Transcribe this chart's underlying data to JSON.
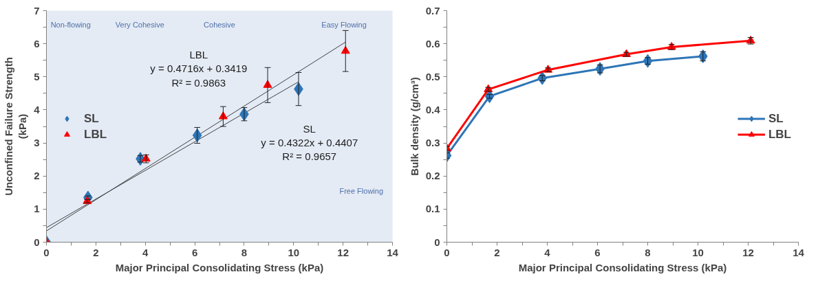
{
  "chart_data": [
    {
      "type": "scatter",
      "xlabel": "Major Principal Consolidating Stress (kPa)",
      "ylabel": "Unconfined Failure Strength\n(kPa)",
      "xlim": [
        0,
        14
      ],
      "ylim": [
        0,
        7
      ],
      "xticks": [
        0,
        {
          "value": 1,
          "label": null
        },
        2,
        {
          "value": 3,
          "label": null
        },
        4,
        {
          "value": 5,
          "label": null
        },
        6,
        {
          "value": 7,
          "label": null
        },
        8,
        {
          "value": 9,
          "label": null
        },
        10,
        {
          "value": 11,
          "label": null
        },
        12,
        {
          "value": 13,
          "label": null
        },
        14
      ],
      "yticks": [
        0,
        {
          "value": 0.5,
          "label": null
        },
        1,
        {
          "value": 1.5,
          "label": null
        },
        2,
        {
          "value": 2.5,
          "label": null
        },
        3,
        {
          "value": 3.5,
          "label": null
        },
        4,
        {
          "value": 4.5,
          "label": null
        },
        5,
        {
          "value": 5.5,
          "label": null
        },
        6,
        {
          "value": 6.5,
          "label": null
        },
        7
      ],
      "grid": false,
      "legend": "left",
      "series": [
        {
          "type": "line",
          "color": "#404040",
          "x": [
            0,
            12.1
          ],
          "values": [
            0.34,
            6.05
          ]
        },
        {
          "type": "line",
          "color": "#404040",
          "x": [
            0,
            10.2
          ],
          "values": [
            0.44,
            4.85
          ]
        },
        {
          "name": "SL",
          "type": "scatter",
          "marker": "diamond",
          "color": "#2e75b6",
          "x": [
            0,
            1.68,
            3.8,
            6.1,
            8.0,
            10.2
          ],
          "values": [
            0,
            1.35,
            2.52,
            3.23,
            3.87,
            4.63
          ],
          "errors": [
            null,
            0.05,
            0.1,
            0.24,
            0.2,
            0.5
          ]
        },
        {
          "name": "LBL",
          "type": "scatter",
          "marker": "triangle",
          "color": "#ff0000",
          "x": [
            0,
            1.65,
            4.03,
            7.15,
            8.95,
            12.1
          ],
          "values": [
            0,
            1.24,
            2.52,
            3.8,
            4.75,
            5.78
          ],
          "errors": [
            null,
            0.05,
            0.12,
            0.3,
            0.53,
            0.62
          ]
        }
      ],
      "annotations": [
        "Non-flowing",
        "Very Cohesive",
        "Cohesive",
        "Easy Flowing",
        "Free Flowing",
        "LBL\ny = 0.4716x + 0.3419\nR² = 0.9863",
        "SL\ny = 0.4322x + 0.4407\nR² = 0.9657"
      ]
    },
    {
      "type": "line",
      "xlabel": "Major Principal Consolidating Stress (kPa)",
      "ylabel": "Bulk density (g/cm³)",
      "xlim": [
        0,
        14
      ],
      "ylim": [
        0,
        0.7
      ],
      "xticks": [
        0,
        {
          "value": 1,
          "label": null
        },
        2,
        {
          "value": 3,
          "label": null
        },
        4,
        {
          "value": 5,
          "label": null
        },
        6,
        {
          "value": 7,
          "label": null
        },
        8,
        {
          "value": 9,
          "label": null
        },
        10,
        {
          "value": 11,
          "label": null
        },
        12,
        {
          "value": 13,
          "label": null
        },
        14
      ],
      "yticks": [
        0,
        {
          "value": 0.05,
          "label": null
        },
        0.1,
        {
          "value": 0.15,
          "label": null
        },
        0.2,
        {
          "value": 0.25,
          "label": null
        },
        0.3,
        {
          "value": 0.35,
          "label": null
        },
        0.4,
        {
          "value": 0.45,
          "label": null
        },
        0.5,
        {
          "value": 0.55,
          "label": null
        },
        0.6,
        {
          "value": 0.65,
          "label": null
        },
        0.7
      ],
      "grid": false,
      "legend": "right",
      "series": [
        {
          "name": "SL",
          "marker": "diamond",
          "color": "#2e75b6",
          "x": [
            0,
            1.7,
            3.8,
            6.1,
            8.0,
            10.2
          ],
          "values": [
            0.262,
            0.441,
            0.496,
            0.524,
            0.548,
            0.562
          ],
          "errors": [
            0.008,
            0.006,
            0.008,
            0.012,
            0.01,
            0.014
          ]
        },
        {
          "name": "LBL",
          "marker": "triangle",
          "color": "#ff0000",
          "x": [
            0,
            1.65,
            4.03,
            7.15,
            8.95,
            12.1
          ],
          "values": [
            0.283,
            0.462,
            0.521,
            0.568,
            0.59,
            0.609
          ],
          "errors": [
            0.006,
            0.006,
            0.006,
            0.006,
            0.008,
            0.01
          ]
        }
      ]
    }
  ]
}
